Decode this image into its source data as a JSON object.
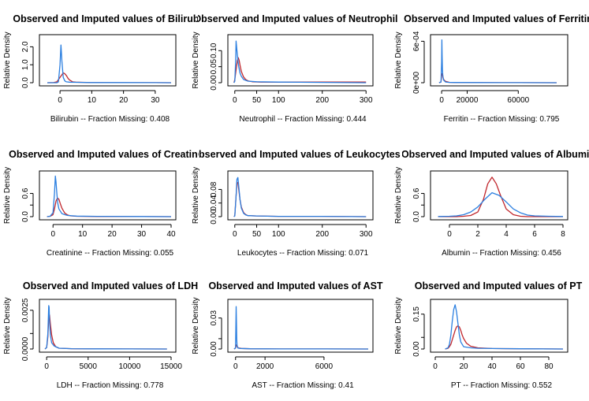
{
  "colors": {
    "observed": "#2b7fe0",
    "imputed": "#c0262c",
    "axis": "#000000"
  },
  "chart_data": [
    {
      "type": "line",
      "title": "Observed and Imputed values of Bilirubin",
      "xlabel": "Bilirubin  --  Fraction Missing: 0.408",
      "ylabel": "Relative Density",
      "xlim": [
        -5,
        35
      ],
      "ylim": [
        0,
        2.5
      ],
      "xticks": [
        0,
        10,
        20,
        30
      ],
      "xtick_labels": [
        "0",
        "10",
        "20",
        "30"
      ],
      "yticks": [
        0,
        1,
        2
      ],
      "ytick_labels": [
        "0.0",
        "1.0",
        "2.0"
      ],
      "series": [
        {
          "name": "observed",
          "x": [
            -4,
            -1,
            -0.5,
            0,
            0.3,
            0.6,
            1,
            1.5,
            2,
            3,
            5,
            10,
            20,
            30,
            35
          ],
          "y": [
            0,
            0,
            0.05,
            1,
            2.1,
            1.2,
            0.3,
            0.1,
            0.05,
            0.03,
            0.02,
            0.01,
            0.01,
            0.005,
            0
          ]
        },
        {
          "name": "imputed",
          "x": [
            -4,
            -2,
            -1,
            0,
            1,
            1.5,
            2,
            2.5,
            3,
            4,
            5,
            7,
            10,
            20,
            30,
            35
          ],
          "y": [
            0,
            0.01,
            0.05,
            0.3,
            0.55,
            0.5,
            0.4,
            0.25,
            0.15,
            0.05,
            0.03,
            0.02,
            0.01,
            0.005,
            0.005,
            0
          ]
        }
      ]
    },
    {
      "type": "line",
      "title": "Observed and Imputed values of Neutrophil",
      "xlabel": "Neutrophil  --  Fraction Missing: 0.444",
      "ylabel": "Relative Density",
      "xlim": [
        -5,
        305
      ],
      "ylim": [
        0,
        0.14
      ],
      "xticks": [
        0,
        50,
        100,
        200,
        300
      ],
      "xtick_labels": [
        "0",
        "50",
        "100",
        "200",
        "300"
      ],
      "yticks": [
        0,
        0.05,
        0.1
      ],
      "ytick_labels": [
        "0.00",
        "0.05",
        "0.10"
      ],
      "series": [
        {
          "name": "observed",
          "x": [
            -2,
            0,
            2,
            3,
            5,
            7,
            9,
            12,
            15,
            20,
            30,
            50,
            100,
            200,
            300
          ],
          "y": [
            0,
            0.005,
            0.07,
            0.13,
            0.1,
            0.07,
            0.05,
            0.03,
            0.02,
            0.01,
            0.005,
            0.003,
            0.002,
            0.001,
            0
          ],
          "split_color_from": 100
        },
        {
          "name": "imputed",
          "x": [
            -2,
            0,
            3,
            6,
            8,
            10,
            12,
            15,
            20,
            25,
            30,
            40,
            60,
            100,
            200,
            300
          ],
          "y": [
            0,
            0.01,
            0.04,
            0.07,
            0.078,
            0.07,
            0.055,
            0.035,
            0.018,
            0.01,
            0.006,
            0.003,
            0.002,
            0.002,
            0.002,
            0.002
          ]
        }
      ]
    },
    {
      "type": "line",
      "title": "Observed and Imputed values of Ferritin",
      "xlabel": "Ferritin  --  Fraction Missing: 0.795",
      "ylabel": "Relative Density",
      "xlim": [
        -5000,
        95000
      ],
      "ylim": [
        0,
        0.00065
      ],
      "xticks": [
        0,
        20000,
        60000
      ],
      "xtick_labels": [
        "0",
        "20000",
        "60000"
      ],
      "yticks": [
        0,
        0.0006
      ],
      "ytick_labels": [
        "0e+00",
        "6e-04"
      ],
      "series": [
        {
          "name": "observed",
          "x": [
            -2000,
            -500,
            0,
            200,
            400,
            600,
            900,
            1500,
            3000,
            6000,
            10000,
            30000,
            60000,
            90000
          ],
          "y": [
            0,
            1e-05,
            0.0003,
            0.00062,
            0.0004,
            0.0002,
            0.0001,
            4e-05,
            1e-05,
            5e-06,
            3e-06,
            2e-06,
            1e-06,
            0
          ]
        },
        {
          "name": "imputed",
          "x": [
            -2000,
            -500,
            0,
            300,
            600,
            900,
            1200,
            1800,
            3000,
            6000,
            10000,
            30000,
            60000,
            90000
          ],
          "y": [
            0,
            1e-05,
            0.0001,
            0.00013,
            0.00012,
            0.0001,
            7e-05,
            4e-05,
            2e-05,
            6e-06,
            3e-06,
            2e-06,
            1e-06,
            0
          ]
        }
      ]
    },
    {
      "type": "line",
      "title": "Observed and Imputed values of Creatinine",
      "xlabel": "Creatinine  --  Fraction Missing: 0.055",
      "ylabel": "Relative Density",
      "xlim": [
        -3,
        40
      ],
      "ylim": [
        0,
        1.1
      ],
      "xticks": [
        0,
        10,
        20,
        30,
        40
      ],
      "xtick_labels": [
        "0",
        "10",
        "20",
        "30",
        "40"
      ],
      "yticks": [
        0,
        0.3,
        0.6
      ],
      "ytick_labels": [
        "0.0",
        "0.6"
      ],
      "series": [
        {
          "name": "observed",
          "x": [
            -2,
            -1,
            0,
            0.5,
            0.8,
            1,
            1.3,
            1.6,
            2,
            3,
            4,
            5,
            8,
            15,
            30,
            40
          ],
          "y": [
            0,
            0.01,
            0.1,
            0.6,
            1.05,
            0.9,
            0.6,
            0.35,
            0.2,
            0.08,
            0.05,
            0.03,
            0.015,
            0.008,
            0.004,
            0
          ]
        },
        {
          "name": "imputed",
          "x": [
            -2,
            -1,
            0,
            0.5,
            1,
            1.5,
            2,
            2.5,
            3,
            4,
            5,
            6,
            8,
            15,
            30,
            40
          ],
          "y": [
            0,
            0.01,
            0.05,
            0.2,
            0.4,
            0.48,
            0.45,
            0.33,
            0.22,
            0.09,
            0.04,
            0.02,
            0.01,
            0.005,
            0.003,
            0
          ]
        }
      ]
    },
    {
      "type": "line",
      "title": "Observed and Imputed values of Leukocytes",
      "xlabel": "Leukocytes  --  Fraction Missing: 0.071",
      "ylabel": "Relative Density",
      "xlim": [
        -5,
        305
      ],
      "ylim": [
        0,
        0.125
      ],
      "xticks": [
        0,
        50,
        100,
        200,
        300
      ],
      "xtick_labels": [
        "0",
        "50",
        "100",
        "200",
        "300"
      ],
      "yticks": [
        0,
        0.04,
        0.08
      ],
      "ytick_labels": [
        "0.00",
        "0.04",
        "0.08"
      ],
      "series": [
        {
          "name": "observed",
          "x": [
            -2,
            0,
            3,
            5,
            7,
            9,
            12,
            15,
            20,
            25,
            30,
            50,
            100,
            200,
            300
          ],
          "y": [
            0,
            0.002,
            0.06,
            0.11,
            0.115,
            0.09,
            0.05,
            0.025,
            0.01,
            0.005,
            0.003,
            0.002,
            0.001,
            0.001,
            0
          ]
        },
        {
          "name": "imputed",
          "x": [
            -2,
            0,
            3,
            5,
            7,
            9,
            12,
            15,
            20,
            25,
            30,
            50,
            100,
            200,
            300
          ],
          "y": [
            0,
            0.003,
            0.06,
            0.1,
            0.1,
            0.08,
            0.05,
            0.028,
            0.012,
            0.006,
            0.003,
            0.002,
            0.001,
            0.001,
            0
          ]
        }
      ]
    },
    {
      "type": "line",
      "title": "Observed and Imputed values of Albumin",
      "xlabel": "Albumin  --  Fraction Missing: 0.456",
      "ylabel": "Relative Density",
      "xlim": [
        -1,
        8
      ],
      "ylim": [
        0,
        1.1
      ],
      "xticks": [
        0,
        2,
        4,
        6,
        8
      ],
      "xtick_labels": [
        "0",
        "2",
        "4",
        "6",
        "8"
      ],
      "yticks": [
        0,
        0.3,
        0.6
      ],
      "ytick_labels": [
        "0.0",
        "0.6"
      ],
      "series": [
        {
          "name": "observed",
          "x": [
            -0.8,
            0,
            0.5,
            1,
            1.5,
            2,
            2.5,
            3,
            3.5,
            4,
            4.5,
            5,
            5.5,
            6,
            7,
            8
          ],
          "y": [
            0.005,
            0.01,
            0.02,
            0.05,
            0.12,
            0.25,
            0.45,
            0.62,
            0.55,
            0.38,
            0.2,
            0.1,
            0.04,
            0.02,
            0.01,
            0.005
          ]
        },
        {
          "name": "imputed",
          "x": [
            -0.8,
            0.5,
            1,
            1.5,
            2,
            2.4,
            2.7,
            3,
            3.3,
            3.6,
            4,
            4.5,
            5,
            5.5,
            7,
            8
          ],
          "y": [
            0,
            0,
            0.01,
            0.03,
            0.12,
            0.45,
            0.85,
            1.02,
            0.85,
            0.55,
            0.2,
            0.05,
            0.01,
            0,
            0,
            0
          ]
        }
      ]
    },
    {
      "type": "line",
      "title": "Observed and Imputed values of LDH",
      "xlabel": "LDH  --  Fraction Missing: 0.778",
      "ylabel": "Relative Density",
      "xlim": [
        -300,
        15000
      ],
      "ylim": [
        0,
        0.003
      ],
      "xticks": [
        0,
        5000,
        10000,
        15000
      ],
      "xtick_labels": [
        "0",
        "5000",
        "10000",
        "15000"
      ],
      "yticks": [
        0,
        0.001,
        0.0025
      ],
      "ytick_labels": [
        "0.0000",
        "0.0025"
      ],
      "series": [
        {
          "name": "observed",
          "x": [
            -200,
            0,
            150,
            250,
            300,
            350,
            450,
            600,
            900,
            1500,
            3000,
            6000,
            10000,
            14500
          ],
          "y": [
            0,
            0.0001,
            0.001,
            0.0028,
            0.0027,
            0.0018,
            0.0009,
            0.0004,
            0.0002,
            5e-05,
            2e-05,
            1e-05,
            5e-06,
            0
          ]
        },
        {
          "name": "imputed",
          "x": [
            -200,
            0,
            150,
            250,
            350,
            450,
            600,
            800,
            1100,
            1500,
            3000,
            6000,
            10000,
            14500
          ],
          "y": [
            0,
            0.0001,
            0.0008,
            0.002,
            0.0022,
            0.0016,
            0.0009,
            0.0004,
            0.00015,
            5e-05,
            2e-05,
            1e-05,
            5e-06,
            0
          ]
        }
      ]
    },
    {
      "type": "line",
      "title": "Observed and Imputed values of AST",
      "xlabel": "AST  --  Fraction Missing: 0.41",
      "ylabel": "Relative Density",
      "xlim": [
        -200,
        9000
      ],
      "ylim": [
        0,
        0.045
      ],
      "xticks": [
        0,
        2000,
        6000
      ],
      "xtick_labels": [
        "0",
        "2000",
        "6000"
      ],
      "yticks": [
        0,
        0.01,
        0.03
      ],
      "ytick_labels": [
        "0.00",
        "0.03"
      ],
      "series": [
        {
          "name": "observed",
          "x": [
            -100,
            0,
            20,
            40,
            60,
            80,
            100,
            150,
            300,
            1000,
            3000,
            6000,
            9000
          ],
          "y": [
            0,
            0.001,
            0.02,
            0.041,
            0.025,
            0.01,
            0.004,
            0.001,
            0.0005,
            0.0002,
            0.0001,
            5e-05,
            0
          ]
        },
        {
          "name": "imputed",
          "x": [
            -100,
            0,
            30,
            60,
            90,
            120,
            200,
            400,
            1000,
            3000,
            6000,
            9000
          ],
          "y": [
            0,
            0.001,
            0.003,
            0.004,
            0.003,
            0.002,
            0.001,
            0.0005,
            0.0002,
            0.0001,
            5e-05,
            0
          ]
        }
      ]
    },
    {
      "type": "line",
      "title": "Observed and Imputed values of PT",
      "xlabel": "PT  --  Fraction Missing: 0.552",
      "ylabel": "Relative Density",
      "xlim": [
        0,
        90
      ],
      "ylim": [
        0,
        0.2
      ],
      "xticks": [
        0,
        20,
        40,
        60,
        80
      ],
      "xtick_labels": [
        "0",
        "20",
        "40",
        "60",
        "80"
      ],
      "yticks": [
        0,
        0.05,
        0.15
      ],
      "ytick_labels": [
        "0.00",
        "0.15"
      ],
      "series": [
        {
          "name": "observed",
          "x": [
            7,
            9,
            10,
            11,
            12,
            13,
            14,
            15,
            16,
            17,
            18,
            20,
            25,
            30,
            40,
            60,
            90
          ],
          "y": [
            0,
            0.005,
            0.02,
            0.06,
            0.12,
            0.17,
            0.19,
            0.16,
            0.11,
            0.06,
            0.03,
            0.01,
            0.005,
            0.003,
            0.002,
            0.001,
            0
          ]
        },
        {
          "name": "imputed",
          "x": [
            7,
            9,
            10,
            11,
            12,
            13,
            14,
            15,
            16,
            17,
            18,
            19,
            20,
            22,
            25,
            30,
            40,
            60,
            90
          ],
          "y": [
            0,
            0.003,
            0.01,
            0.02,
            0.04,
            0.06,
            0.08,
            0.095,
            0.1,
            0.095,
            0.08,
            0.06,
            0.045,
            0.025,
            0.012,
            0.005,
            0.002,
            0.001,
            0
          ]
        }
      ]
    }
  ]
}
